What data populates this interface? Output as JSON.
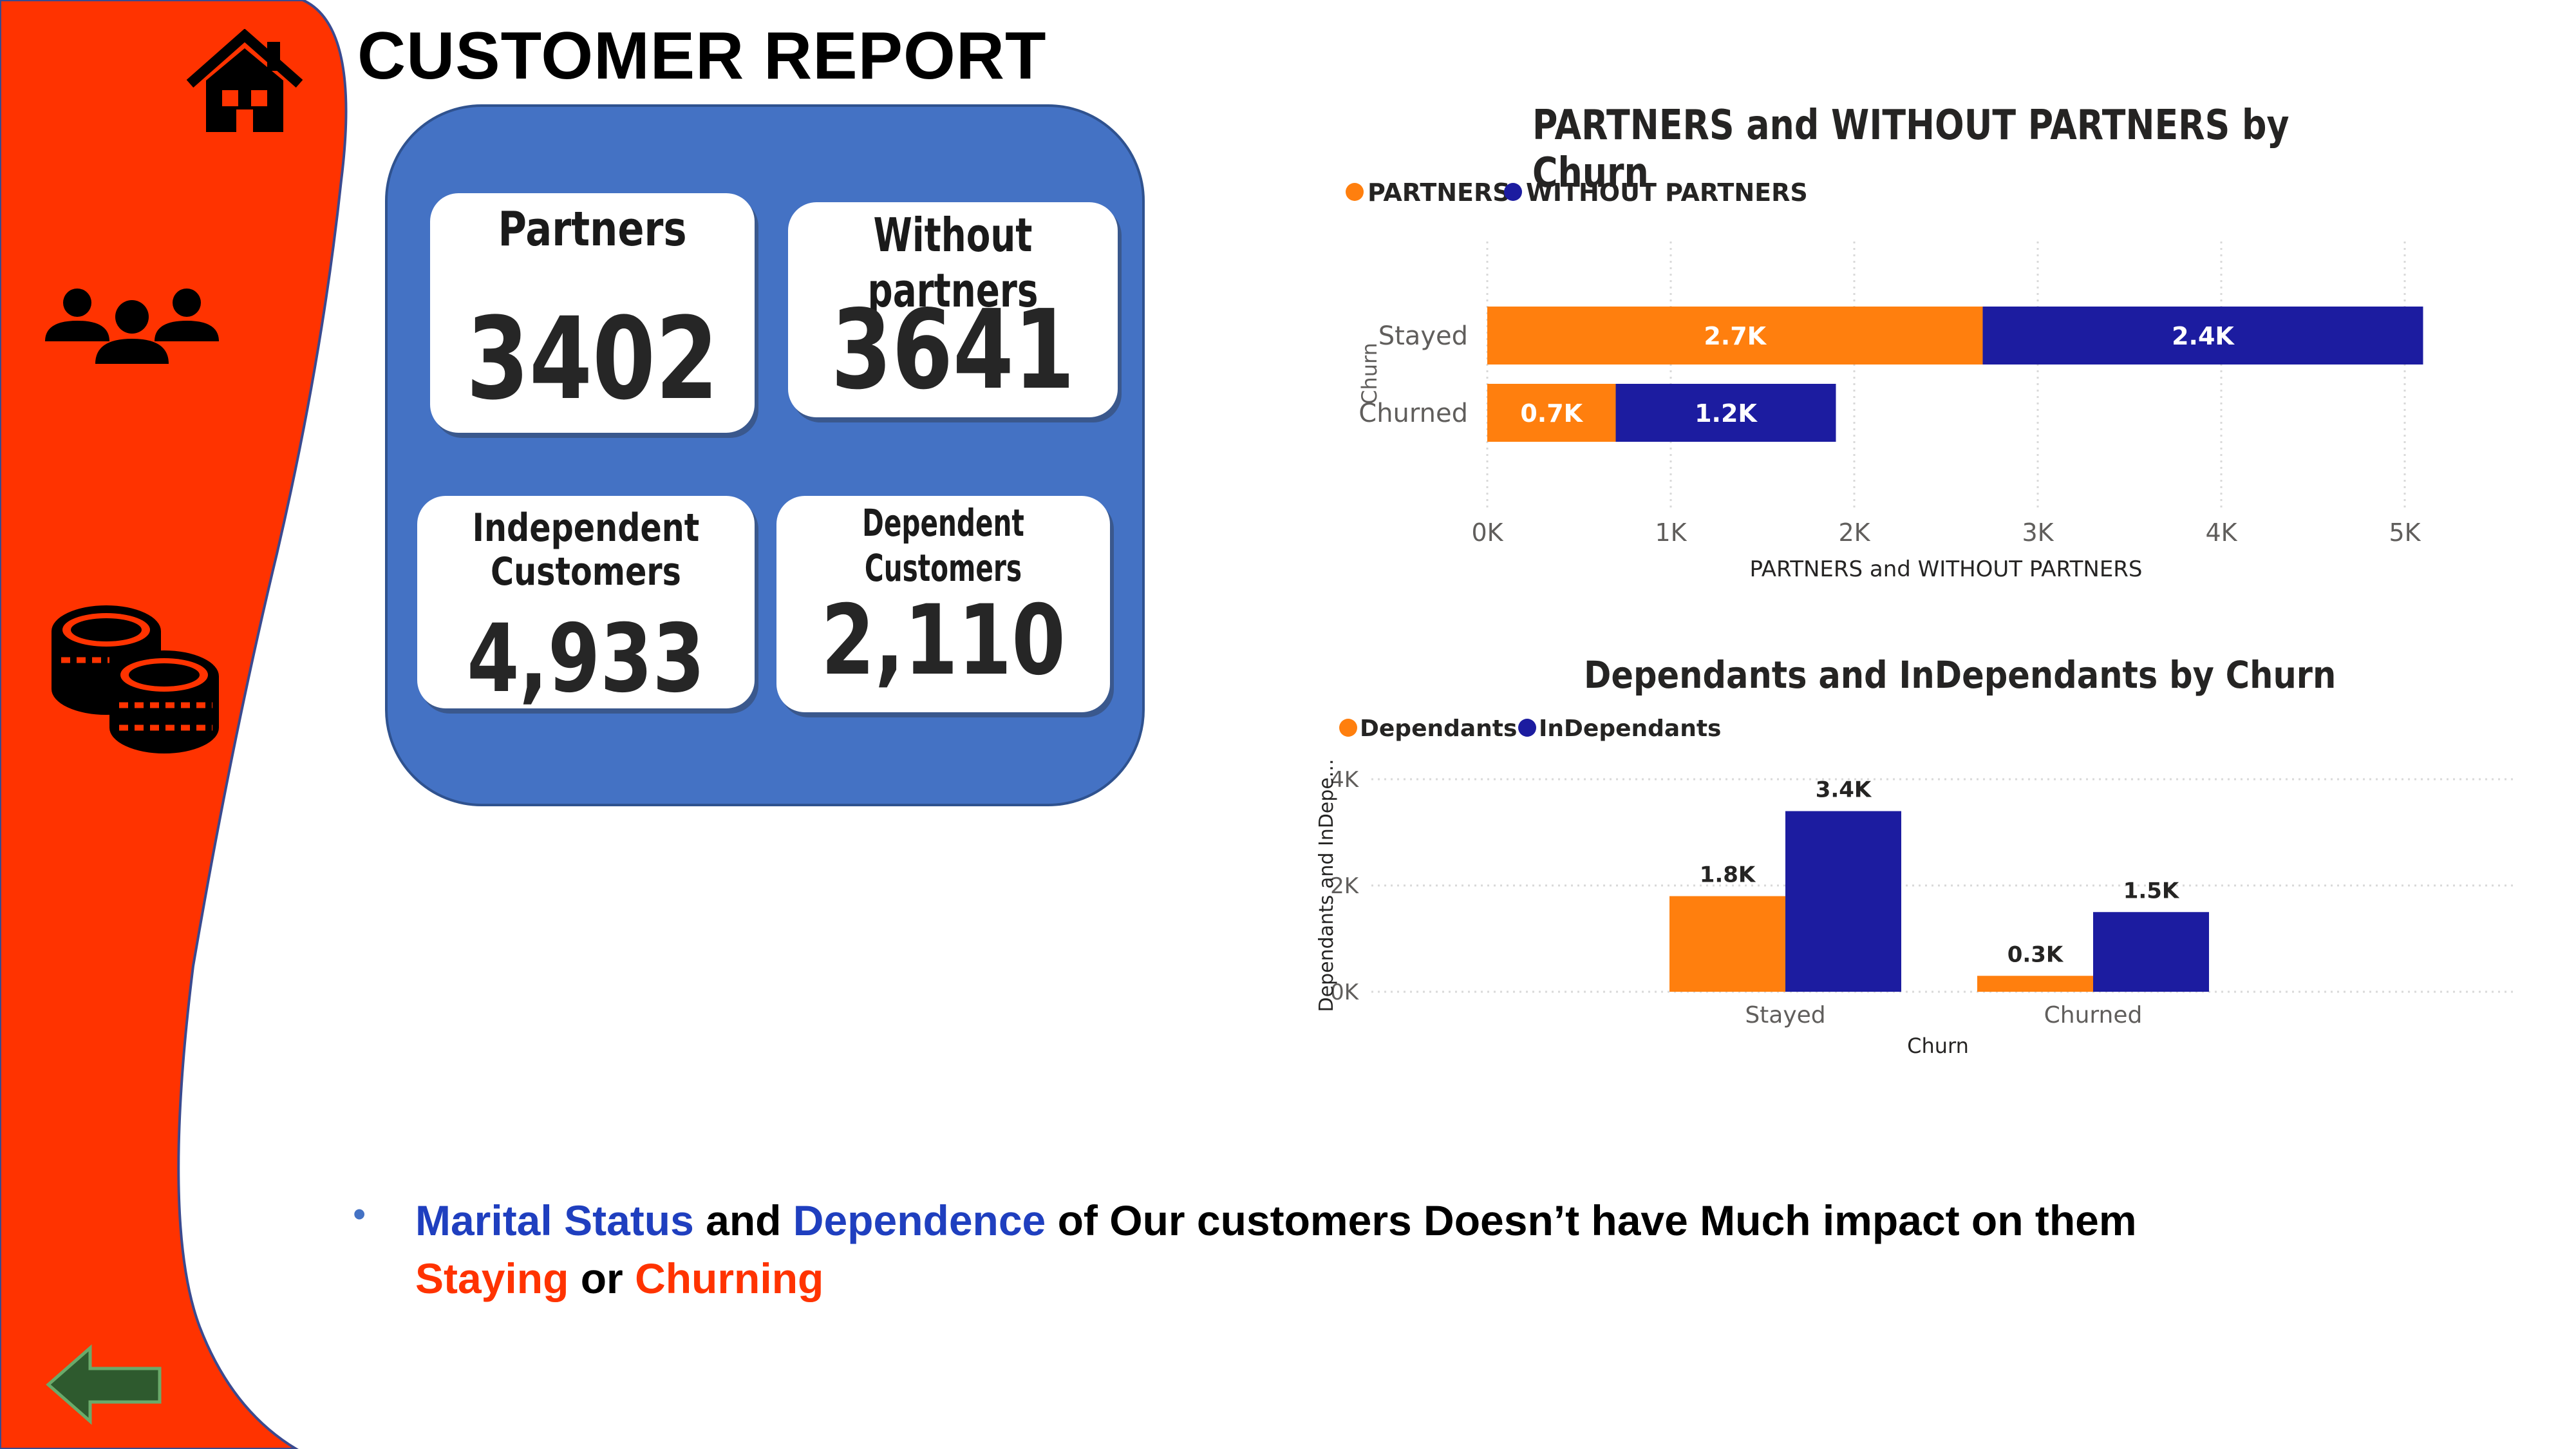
{
  "page": {
    "title": "CUSTOMER REPORT"
  },
  "colors": {
    "sidebar": "#ff3300",
    "panel": "#4472c4",
    "orange": "#ff7f0e",
    "navy": "#1c1ca0",
    "accent_blue": "#1f3fbf"
  },
  "sidebar": {
    "icons": [
      "home-icon",
      "users-icon",
      "coins-icon",
      "back-arrow-icon"
    ]
  },
  "kpis": {
    "partners": {
      "label": "Partners",
      "value": "3402"
    },
    "without_partners": {
      "label": "Without partners",
      "value": "3641"
    },
    "independent": {
      "label_line1": "Independent",
      "label_line2": "Customers",
      "value": "4,933"
    },
    "dependent": {
      "label": "Dependent Customers",
      "value": "2,110"
    }
  },
  "chart_data": [
    {
      "type": "bar",
      "orientation": "horizontal",
      "stacked": true,
      "title": "PARTNERS and WITHOUT PARTNERS by Churn",
      "xlabel": "PARTNERS and WITHOUT PARTNERS",
      "ylabel": "Churn",
      "categories": [
        "Stayed",
        "Churned"
      ],
      "series": [
        {
          "name": "PARTNERS",
          "values": [
            2700,
            700
          ],
          "labels": [
            "2.7K",
            "0.7K"
          ],
          "color": "#ff7f0e"
        },
        {
          "name": "WITHOUT PARTNERS",
          "values": [
            2400,
            1200
          ],
          "labels": [
            "2.4K",
            "1.2K"
          ],
          "color": "#1c1ca0"
        }
      ],
      "xlim": [
        0,
        5000
      ],
      "xticks": [
        "0K",
        "1K",
        "2K",
        "3K",
        "4K",
        "5K"
      ],
      "grid": "vertical",
      "legend": "top-left"
    },
    {
      "type": "bar",
      "orientation": "vertical",
      "stacked": false,
      "title": "Dependants and InDependants by Churn",
      "xlabel": "Churn",
      "ylabel": "Dependants and InDepe...",
      "categories": [
        "Stayed",
        "Churned"
      ],
      "series": [
        {
          "name": "Dependants",
          "values": [
            1800,
            300
          ],
          "labels": [
            "1.8K",
            "0.3K"
          ],
          "color": "#ff7f0e"
        },
        {
          "name": "InDependants",
          "values": [
            3400,
            1500
          ],
          "labels": [
            "3.4K",
            "1.5K"
          ],
          "color": "#1c1ca0"
        }
      ],
      "ylim": [
        0,
        4000
      ],
      "yticks": [
        "0K",
        "2K",
        "4K"
      ],
      "grid": "horizontal",
      "legend": "top-left"
    }
  ],
  "insight": {
    "bullet": "•",
    "part1": "Marital Status",
    "part2": " and ",
    "part3": "Dependence",
    "part4": " of Our customers Doesn’t have Much impact on them",
    "part5": "Staying",
    "part6": " or ",
    "part7": "Churning"
  }
}
